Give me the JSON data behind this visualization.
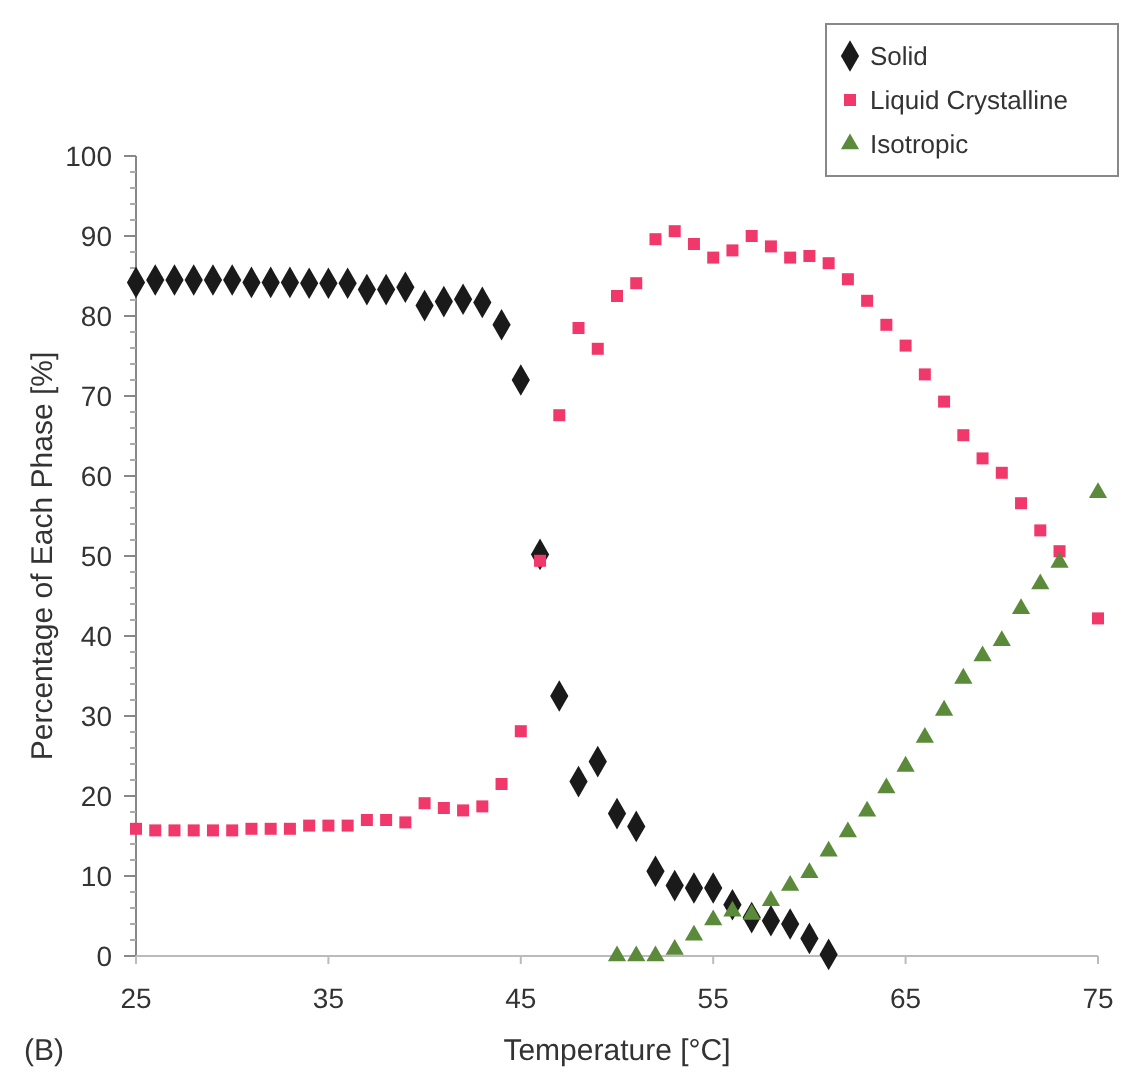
{
  "chart_data": {
    "type": "scatter",
    "xlabel": "Temperature [°C]",
    "ylabel": "Percentage of Each Phase [%]",
    "annotations": [
      "(B)"
    ],
    "xlim": [
      25,
      75
    ],
    "xticks": [
      25,
      35,
      45,
      55,
      65,
      75
    ],
    "ylim": [
      0,
      100
    ],
    "yticks": [
      0,
      10,
      20,
      30,
      40,
      50,
      60,
      70,
      80,
      90,
      100
    ],
    "grid": false,
    "legend": "top right",
    "series": [
      {
        "name": "Solid",
        "color": "#1a1a1a",
        "marker": "diamond",
        "x": [
          25,
          26,
          27,
          28,
          29,
          30,
          31,
          32,
          33,
          34,
          35,
          36,
          37,
          38,
          39,
          40,
          41,
          42,
          43,
          44,
          45,
          46,
          47,
          48,
          49,
          50,
          51,
          52,
          53,
          54,
          55,
          56,
          57,
          58,
          59,
          60,
          61
        ],
        "values": [
          84.2,
          84.5,
          84.5,
          84.5,
          84.5,
          84.5,
          84.2,
          84.2,
          84.2,
          84.1,
          84.1,
          84.1,
          83.3,
          83.3,
          83.6,
          81.3,
          81.8,
          82.1,
          81.7,
          78.9,
          72.0,
          50.2,
          32.5,
          21.8,
          24.3,
          17.8,
          16.2,
          10.6,
          8.8,
          8.5,
          8.5,
          6.4,
          4.8,
          4.4,
          4.0,
          2.2,
          0.2
        ]
      },
      {
        "name": "Liquid Crystalline",
        "color": "#f0386b",
        "marker": "square",
        "x": [
          25,
          26,
          27,
          28,
          29,
          30,
          31,
          32,
          33,
          34,
          35,
          36,
          37,
          38,
          39,
          40,
          41,
          42,
          43,
          44,
          45,
          46,
          47,
          48,
          49,
          50,
          51,
          52,
          53,
          54,
          55,
          56,
          57,
          58,
          59,
          60,
          61,
          62,
          63,
          64,
          65,
          66,
          67,
          68,
          69,
          70,
          71,
          72,
          73,
          75
        ],
        "values": [
          15.9,
          15.7,
          15.7,
          15.7,
          15.7,
          15.7,
          15.9,
          15.9,
          15.9,
          16.3,
          16.3,
          16.3,
          17.0,
          17.0,
          16.7,
          19.1,
          18.5,
          18.2,
          18.7,
          21.5,
          28.1,
          49.4,
          67.6,
          78.5,
          75.9,
          82.5,
          84.1,
          89.6,
          90.6,
          89.0,
          87.3,
          88.2,
          90.0,
          88.7,
          87.3,
          87.5,
          86.6,
          84.6,
          81.9,
          78.9,
          76.3,
          72.7,
          69.3,
          65.1,
          62.2,
          60.4,
          56.6,
          53.2,
          50.6,
          42.2
        ]
      },
      {
        "name": "Isotropic",
        "color": "#5a8a3a",
        "marker": "triangle",
        "x": [
          50,
          51,
          52,
          53,
          54,
          55,
          56,
          57,
          58,
          59,
          60,
          61,
          62,
          63,
          64,
          65,
          66,
          67,
          68,
          69,
          70,
          71,
          72,
          73,
          75
        ],
        "values": [
          0,
          0,
          0,
          0.8,
          2.6,
          4.5,
          5.6,
          5.2,
          6.9,
          8.8,
          10.4,
          13.1,
          15.5,
          18.1,
          21.0,
          23.7,
          27.3,
          30.7,
          34.7,
          37.5,
          39.4,
          43.4,
          46.5,
          49.2,
          57.9
        ]
      }
    ]
  }
}
